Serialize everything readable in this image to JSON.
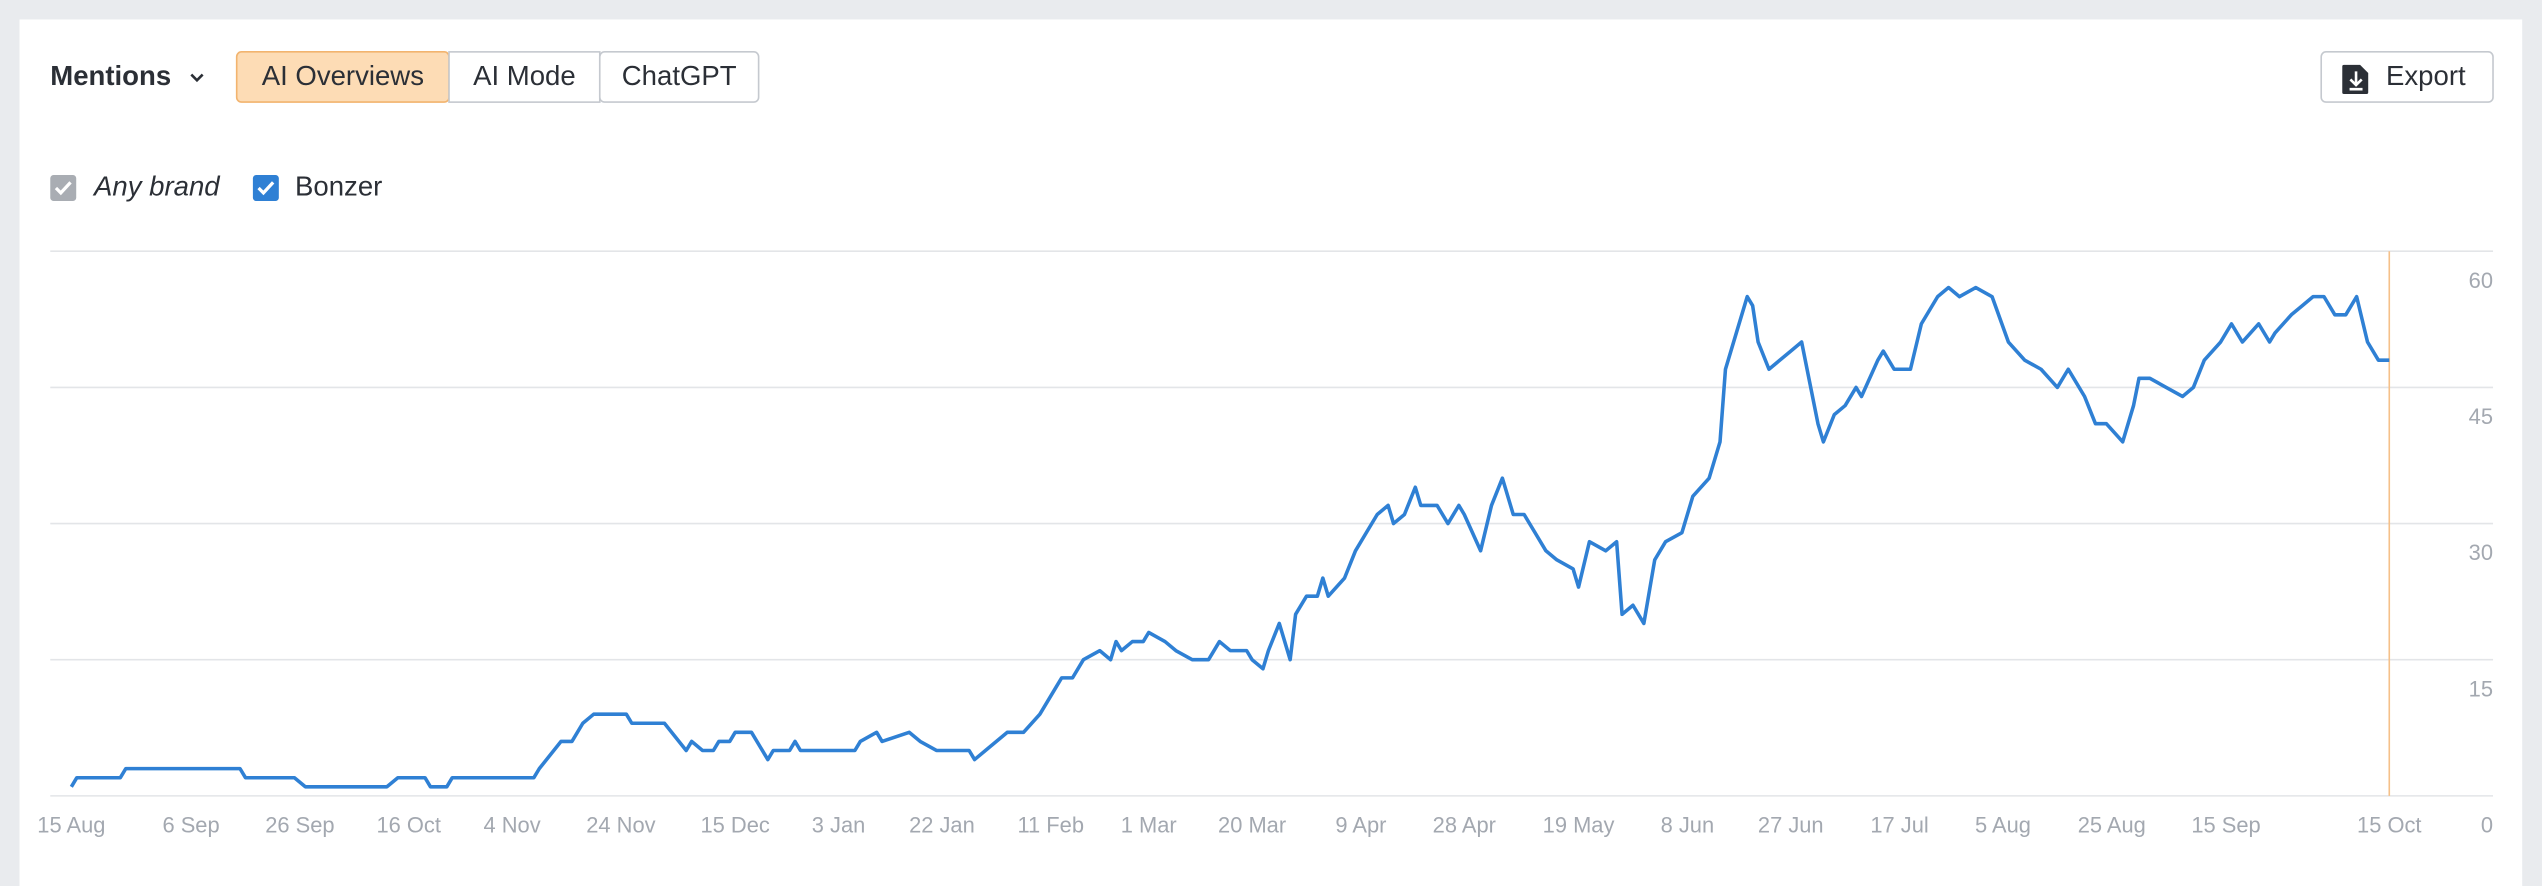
{
  "controls": {
    "metric": "Mentions",
    "tabs": [
      "AI Overviews",
      "AI Mode",
      "ChatGPT"
    ],
    "active_tab": 0,
    "export": "Export"
  },
  "filters": {
    "any_brand": "Any brand"
  },
  "chart_data": {
    "type": "line",
    "x": [
      0,
      1,
      9,
      10,
      31,
      32,
      41,
      43,
      58,
      60,
      65,
      66,
      69,
      70,
      85,
      86,
      90,
      92,
      94,
      96,
      102,
      103,
      109,
      113,
      114,
      116,
      118,
      119,
      121,
      122,
      125,
      128,
      129,
      132,
      133,
      134,
      144,
      145,
      148,
      149,
      154,
      156,
      159,
      165,
      166,
      168,
      172,
      175,
      178,
      181,
      182,
      184,
      186,
      189,
      191,
      192,
      193,
      195,
      197,
      198,
      201,
      203,
      206,
      209,
      211,
      213,
      216,
      217,
      219,
      220,
      222,
      224,
      225,
      227,
      229,
      230,
      231,
      234,
      236,
      238,
      240,
      242,
      243,
      245,
      247,
      248,
      251,
      253,
      255,
      256,
      259,
      261,
      263,
      265,
      267,
      269,
      271,
      273,
      276,
      277,
      279,
      282,
      284,
      285,
      287,
      289,
      291,
      293,
      296,
      298,
      301,
      303,
      304,
      306,
      308,
      309,
      310,
      312,
      314,
      316,
      318,
      319,
      321,
      322,
      324,
      326,
      328,
      329,
      332,
      333,
      335,
      338,
      340,
      343,
      345,
      347,
      350,
      353,
      356,
      359,
      362,
      365,
      367,
      370,
      372,
      374,
      377,
      379,
      380,
      382,
      385,
      388,
      390,
      392,
      395,
      397,
      399,
      402,
      404,
      405,
      408,
      410,
      412,
      414,
      416,
      418,
      420,
      422,
      424,
      426
    ],
    "series": [
      {
        "name": "Bonzer",
        "color": "#2f80d4",
        "values": [
          1,
          2,
          2,
          3,
          3,
          2,
          2,
          1,
          1,
          2,
          2,
          1,
          1,
          2,
          2,
          3,
          6,
          6,
          8,
          9,
          9,
          8,
          8,
          5,
          6,
          5,
          5,
          6,
          6,
          7,
          7,
          4,
          5,
          5,
          6,
          5,
          5,
          6,
          7,
          6,
          7,
          6,
          5,
          5,
          4,
          5,
          7,
          7,
          9,
          12,
          13,
          13,
          15,
          16,
          15,
          17,
          16,
          17,
          17,
          18,
          17,
          16,
          15,
          15,
          17,
          16,
          16,
          15,
          14,
          16,
          19,
          15,
          20,
          22,
          22,
          24,
          22,
          24,
          27,
          29,
          31,
          32,
          30,
          31,
          34,
          32,
          32,
          30,
          32,
          31,
          27,
          32,
          35,
          31,
          31,
          29,
          27,
          26,
          25,
          23,
          28,
          27,
          28,
          20,
          21,
          19,
          26,
          28,
          29,
          33,
          35,
          39,
          47,
          51,
          55,
          54,
          50,
          47,
          48,
          49,
          50,
          47,
          41,
          39,
          42,
          43,
          45,
          44,
          48,
          49,
          47,
          47,
          52,
          55,
          56,
          55,
          56,
          55,
          50,
          48,
          47,
          45,
          47,
          44,
          41,
          41,
          39,
          43,
          46,
          46,
          45,
          44,
          45,
          48,
          50,
          52,
          50,
          52,
          50,
          51,
          53,
          54,
          55,
          55,
          53,
          53,
          55,
          50,
          48,
          48
        ]
      }
    ],
    "xlim": [
      0,
      426
    ],
    "xticks": [
      {
        "value": 0,
        "label": "15 Aug"
      },
      {
        "value": 22,
        "label": "6 Sep"
      },
      {
        "value": 42,
        "label": "26 Sep"
      },
      {
        "value": 62,
        "label": "16 Oct"
      },
      {
        "value": 81,
        "label": "4 Nov"
      },
      {
        "value": 101,
        "label": "24 Nov"
      },
      {
        "value": 122,
        "label": "15 Dec"
      },
      {
        "value": 141,
        "label": "3 Jan"
      },
      {
        "value": 160,
        "label": "22 Jan"
      },
      {
        "value": 180,
        "label": "11 Feb"
      },
      {
        "value": 198,
        "label": "1 Mar"
      },
      {
        "value": 217,
        "label": "20 Mar"
      },
      {
        "value": 237,
        "label": "9 Apr"
      },
      {
        "value": 256,
        "label": "28 Apr"
      },
      {
        "value": 277,
        "label": "19 May"
      },
      {
        "value": 297,
        "label": "8 Jun"
      },
      {
        "value": 316,
        "label": "27 Jun"
      },
      {
        "value": 336,
        "label": "17 Jul"
      },
      {
        "value": 355,
        "label": "5 Aug"
      },
      {
        "value": 375,
        "label": "25 Aug"
      },
      {
        "value": 396,
        "label": "15 Sep"
      },
      {
        "value": 426,
        "label": "15 Oct"
      }
    ],
    "ylim": [
      0,
      60
    ],
    "yticks": [
      0,
      15,
      30,
      45,
      60
    ],
    "grid": true
  }
}
